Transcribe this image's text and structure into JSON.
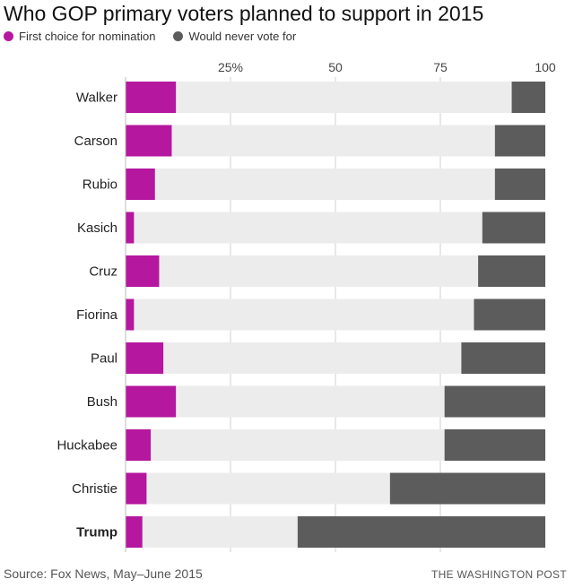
{
  "title": "Who GOP primary voters planned to support in 2015",
  "legend": {
    "first_choice": "First choice for nomination",
    "never_vote": "Would never vote for"
  },
  "colors": {
    "first_choice": "#b5179e",
    "never_vote": "#5c5c5c",
    "background_bar": "#ececec",
    "grid": "#d0d0d0"
  },
  "source": "Source: Fox News, May–June 2015",
  "brand": "THE WASHINGTON POST",
  "chart_data": {
    "type": "bar",
    "orientation": "horizontal",
    "title": "Who GOP primary voters planned to support in 2015",
    "xlabel": "",
    "ylabel": "",
    "xlim": [
      0,
      100
    ],
    "grid": true,
    "legend": "top-left",
    "tick_values": [
      25,
      50,
      75,
      100
    ],
    "tick_labels": [
      "25%",
      "50",
      "75",
      "100"
    ],
    "categories": [
      "Walker",
      "Carson",
      "Rubio",
      "Kasich",
      "Cruz",
      "Fiorina",
      "Paul",
      "Bush",
      "Huckabee",
      "Christie",
      "Trump"
    ],
    "highlight_category": "Trump",
    "series": [
      {
        "name": "First choice for nomination",
        "values": [
          12,
          11,
          7,
          2,
          8,
          2,
          9,
          12,
          6,
          5,
          4
        ]
      },
      {
        "name": "Would never vote for",
        "values": [
          8,
          12,
          12,
          15,
          16,
          17,
          20,
          24,
          24,
          37,
          59
        ]
      }
    ]
  }
}
